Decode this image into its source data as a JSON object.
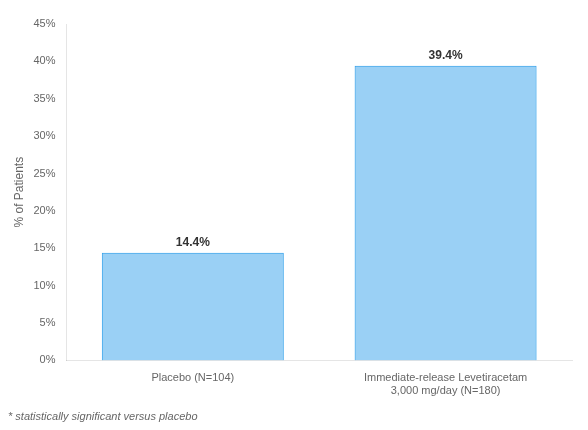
{
  "chart_data": {
    "type": "bar",
    "categories": [
      "Placebo (N=104)",
      "Immediate-release Levetiracetam\n3,000 mg/day (N=180)"
    ],
    "values": [
      14.4,
      39.4
    ],
    "value_labels": [
      "14.4%",
      "39.4%"
    ],
    "data_labels": true,
    "ylabel": "% of Patients",
    "ylim": [
      0,
      45
    ],
    "yticks": [
      {
        "value": 0,
        "label": "0%"
      },
      {
        "value": 5,
        "label": "5%"
      },
      {
        "value": 10,
        "label": "10%"
      },
      {
        "value": 15,
        "label": "15%"
      },
      {
        "value": 20,
        "label": "20%"
      },
      {
        "value": 25,
        "label": "25%"
      },
      {
        "value": 30,
        "label": "30%"
      },
      {
        "value": 35,
        "label": "35%"
      },
      {
        "value": 40,
        "label": "40%"
      },
      {
        "value": 45,
        "label": "45%"
      }
    ],
    "grid": false,
    "annotations": [
      "* statistically significant versus placebo"
    ]
  }
}
